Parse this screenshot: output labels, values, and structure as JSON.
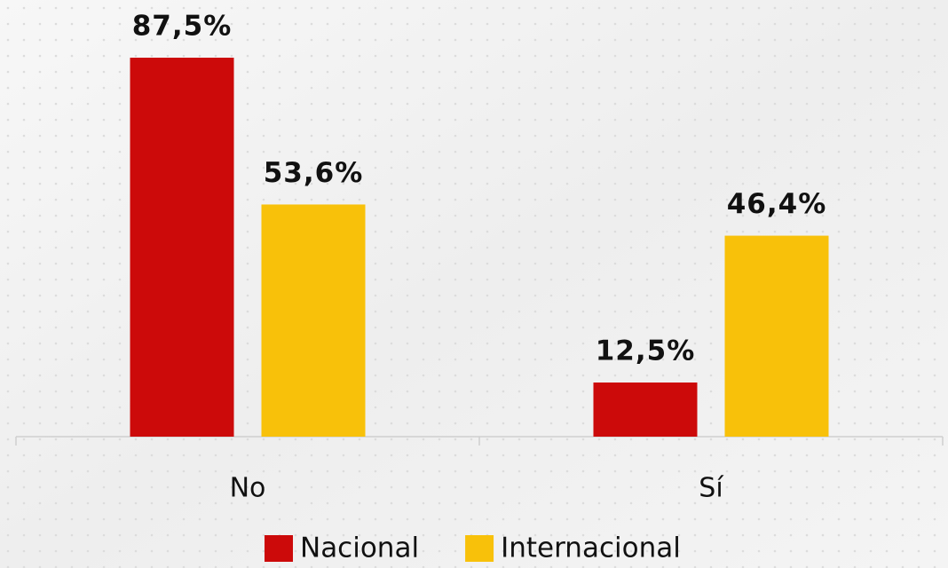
{
  "chart_data": {
    "type": "bar",
    "categories": [
      "No",
      "Sí"
    ],
    "series": [
      {
        "name": "Nacional",
        "color": "#cc0a0a",
        "values": [
          87.5,
          12.5
        ],
        "value_labels": [
          "87,5%",
          "12,5%"
        ]
      },
      {
        "name": "Internacional",
        "color": "#f8c10a",
        "values": [
          53.6,
          46.4
        ],
        "value_labels": [
          "53,6%",
          "46,4%"
        ]
      }
    ],
    "legend": "bottom"
  }
}
